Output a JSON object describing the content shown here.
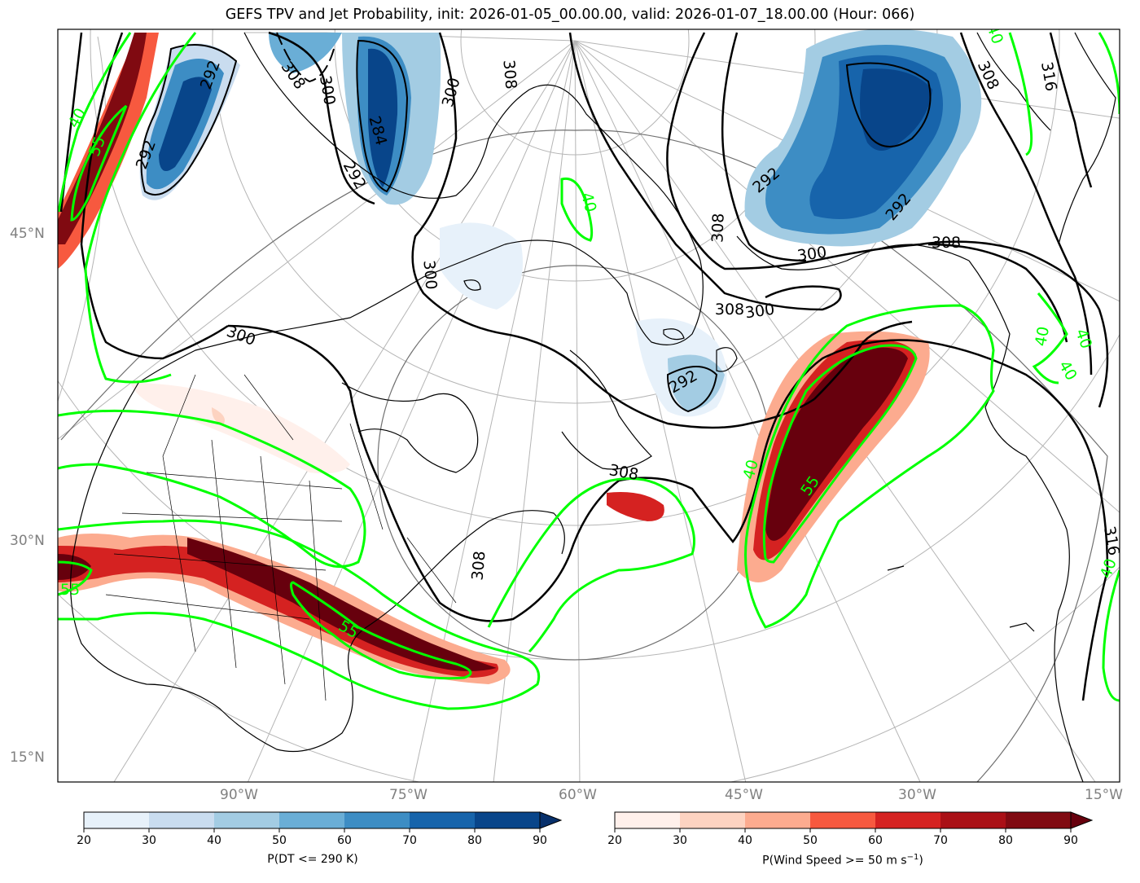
{
  "title": "GEFS TPV and Jet Probability, init: 2026-01-05_00.00.00, valid: 2026-01-07_18.00.00 (Hour: 066)",
  "lat_labels": [
    "45°N",
    "30°N",
    "15°N"
  ],
  "lon_labels": [
    "90°W",
    "75°W",
    "60°W",
    "45°W",
    "30°W",
    "15°W"
  ],
  "theta_contour_labels": [
    "292",
    "284",
    "292",
    "308",
    "300",
    "292",
    "300",
    "292",
    "308",
    "300",
    "308",
    "308",
    "300",
    "292",
    "308",
    "292",
    "308",
    "300",
    "316",
    "308",
    "316",
    "300",
    "308"
  ],
  "jet_contour_labels": [
    "40",
    "55",
    "40",
    "40",
    "55",
    "40",
    "55",
    "55",
    "40",
    "40",
    "40",
    "40"
  ],
  "colorbar_tpv": {
    "label": "P(DT <= 290 K)",
    "ticks": [
      "20",
      "30",
      "40",
      "50",
      "60",
      "70",
      "80",
      "90"
    ],
    "colors": [
      "#e7f1fa",
      "#c9dcef",
      "#a3cce3",
      "#6aaed6",
      "#3d8dc4",
      "#1764ab",
      "#08458a"
    ],
    "extend_color": "#08306b"
  },
  "colorbar_jet": {
    "label": "P(Wind Speed >= 50 m s",
    "label_sup": "−1",
    "label_end": ")",
    "ticks": [
      "20",
      "30",
      "40",
      "50",
      "60",
      "70",
      "80",
      "90"
    ],
    "colors": [
      "#fff0eb",
      "#fdd3c1",
      "#fcab8f",
      "#f7593f",
      "#d52221",
      "#aa1016",
      "#800a11"
    ],
    "extend_color": "#67000d"
  },
  "colors": {
    "jet_contour": "#00ff00",
    "theta_contour": "#000000",
    "graticule": "#b5b5b5",
    "coastline": "#000000",
    "tick_label": "#808080"
  }
}
